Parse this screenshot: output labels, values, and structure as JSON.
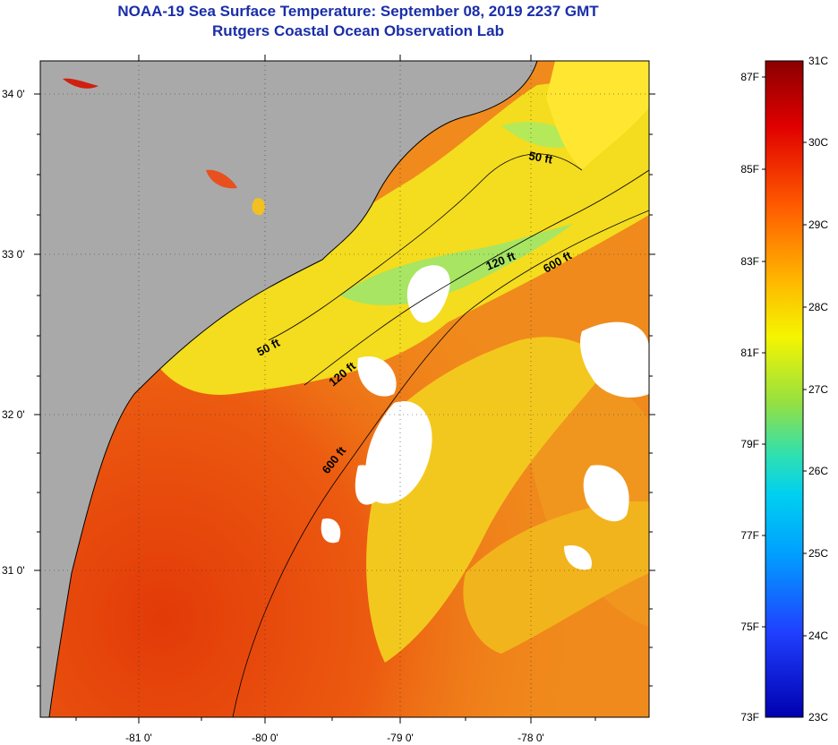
{
  "title": {
    "line1": "NOAA-19 Sea Surface Temperature:  September 08, 2019 2237 GMT",
    "line2": "Rutgers Coastal Ocean Observation Lab"
  },
  "map": {
    "lat_labels": [
      "34 0'",
      "33 0'",
      "32 0'",
      "31 0'"
    ],
    "lon_labels": [
      "-81 0'",
      "-80 0'",
      "-79 0'",
      "-78 0'"
    ],
    "contours": [
      {
        "label": "50 ft"
      },
      {
        "label": "50 ft"
      },
      {
        "label": "120 ft"
      },
      {
        "label": "120 ft"
      },
      {
        "label": "600 ft"
      },
      {
        "label": "600 ft"
      }
    ],
    "colors": {
      "land": "#a9a9a9",
      "cloud": "#ffffff",
      "ocean_warm": "#e8480c",
      "ocean_mid": "#f08a1c",
      "ocean_cool": "#f4dc1e",
      "ocean_cold": "#9ee66a"
    }
  },
  "colorbar": {
    "fahrenheit": [
      "87F",
      "85F",
      "83F",
      "81F",
      "79F",
      "77F",
      "75F",
      "73F"
    ],
    "celsius": [
      "31C",
      "30C",
      "29C",
      "28C",
      "27C",
      "26C",
      "25C",
      "24C",
      "23C"
    ],
    "gradient": [
      "#8b0000",
      "#e00000",
      "#ff5a00",
      "#ffb300",
      "#f5f500",
      "#96e040",
      "#30e0b0",
      "#00d0f0",
      "#00a0ff",
      "#2040ff",
      "#0000b0"
    ]
  }
}
